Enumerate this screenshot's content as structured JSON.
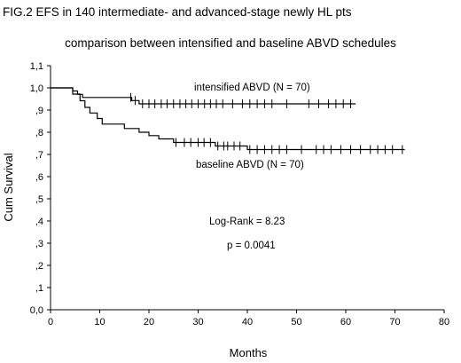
{
  "chart_data": {
    "type": "line",
    "title_line1": "FIG.2  EFS in 140 intermediate- and advanced-stage newly HL pts",
    "title_line2": "comparison between intensified and baseline ABVD schedules",
    "xlabel": "Months",
    "ylabel": "Cum Survival",
    "xlim": [
      0,
      80
    ],
    "ylim": [
      0,
      1.1
    ],
    "xticks": [
      0,
      10,
      20,
      30,
      40,
      50,
      60,
      70,
      80
    ],
    "yticks": [
      0.0,
      0.1,
      0.2,
      0.3,
      0.4,
      0.5,
      0.6,
      0.7,
      0.8,
      0.9,
      1.0,
      1.1
    ],
    "ytick_labels": [
      "0,0",
      ",1",
      ",2",
      ",3",
      ",4",
      ",5",
      ",6",
      ",7",
      ",8",
      ",9",
      "1,0",
      "1,1"
    ],
    "annotations": [
      "Log-Rank = 8.23",
      "p = 0.0041"
    ],
    "series": [
      {
        "name": "intensified ABVD",
        "label": "intensified ABVD    (N = 70)",
        "steps": [
          [
            0,
            1.0
          ],
          [
            4.5,
            0.986
          ],
          [
            5.5,
            0.971
          ],
          [
            6.5,
            0.957
          ],
          [
            16.5,
            0.943
          ],
          [
            18,
            0.928
          ],
          [
            62,
            0.928
          ]
        ],
        "censored": [
          16.3,
          17.2,
          18.7,
          20.0,
          21.2,
          22.5,
          23.7,
          25.0,
          26.3,
          27.5,
          28.7,
          30.0,
          31.3,
          32.5,
          33.7,
          35.0,
          37.0,
          39.0,
          40.5,
          42.0,
          43.5,
          45.0,
          48.0,
          52.5,
          54.5,
          56.5,
          58.0,
          59.5,
          61.0
        ]
      },
      {
        "name": "baseline ABVD",
        "label": "baseline ABVD     (N = 70)",
        "steps": [
          [
            0,
            1.0
          ],
          [
            4.5,
            0.972
          ],
          [
            6,
            0.942
          ],
          [
            7,
            0.912
          ],
          [
            8,
            0.887
          ],
          [
            9.5,
            0.862
          ],
          [
            10.5,
            0.837
          ],
          [
            15,
            0.817
          ],
          [
            18,
            0.8
          ],
          [
            20,
            0.785
          ],
          [
            22,
            0.77
          ],
          [
            25,
            0.754
          ],
          [
            33.5,
            0.738
          ],
          [
            40,
            0.722
          ],
          [
            72,
            0.722
          ]
        ],
        "censored": [
          25.5,
          27.2,
          28.5,
          30.0,
          31.2,
          32.5,
          34.0,
          35.2,
          36.0,
          37.3,
          38.5,
          40.5,
          42.0,
          43.5,
          45.0,
          46.5,
          48.0,
          51.0,
          54.0,
          55.5,
          57.0,
          59.0,
          61.0,
          63.0,
          65.0,
          66.5,
          68.0,
          69.5,
          71.5
        ]
      }
    ]
  }
}
